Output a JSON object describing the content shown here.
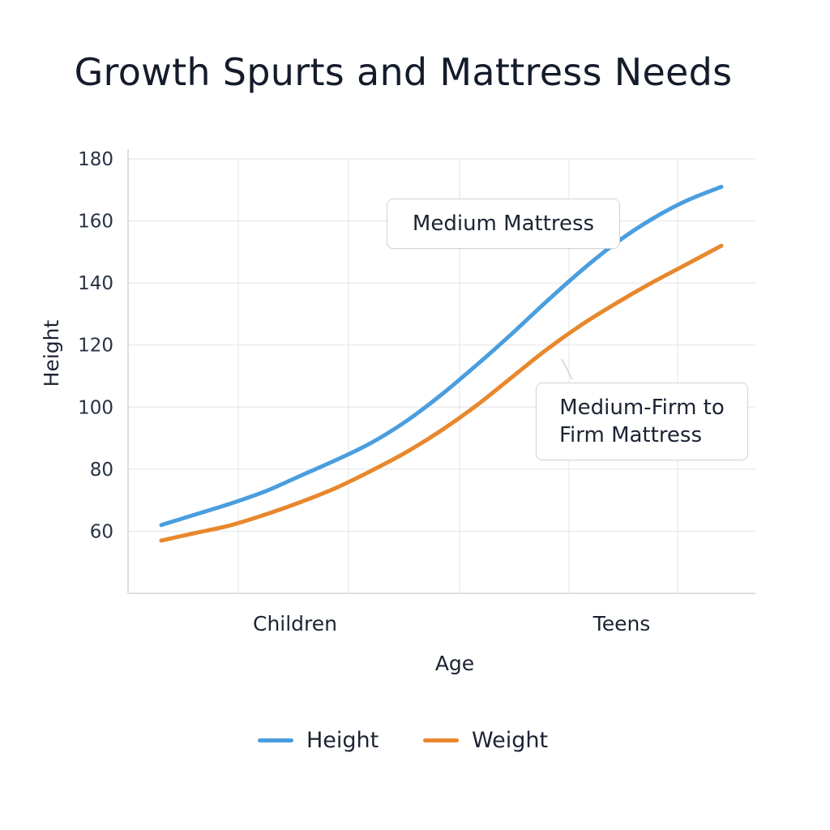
{
  "chart_data": {
    "type": "line",
    "title": "Growth Spurts and Mattress Needs",
    "xlabel": "Age",
    "ylabel": "Height",
    "categories": [
      "Children",
      "Teens"
    ],
    "x": [
      1,
      2,
      3,
      4,
      5,
      6,
      7,
      8,
      9,
      10,
      11,
      12,
      13,
      14,
      15,
      16,
      17
    ],
    "ylim": [
      40,
      180
    ],
    "yticks": [
      60,
      80,
      100,
      120,
      140,
      160,
      180
    ],
    "grid": true,
    "legend_position": "bottom",
    "series": [
      {
        "name": "Height",
        "color": "#4a9ede",
        "values": [
          62,
          65.5,
          69,
          73,
          78,
          83,
          88.5,
          95.5,
          104,
          113.5,
          123.5,
          134,
          144,
          153,
          160.5,
          166.5,
          171
        ]
      },
      {
        "name": "Weight",
        "color": "#e8872c",
        "values": [
          57,
          59.5,
          62,
          65.5,
          69.5,
          74,
          79.5,
          85.5,
          92.5,
          100.5,
          109.5,
          118.5,
          126.5,
          133.5,
          140,
          146,
          152
        ]
      }
    ],
    "annotations": [
      {
        "text": "Medium Mattress"
      },
      {
        "text": "Medium-Firm to Firm Mattress"
      }
    ]
  },
  "annotations": {
    "medium": "Medium Mattress",
    "firm_line1": "Medium-Firm to",
    "firm_line2": "Firm Mattress"
  }
}
